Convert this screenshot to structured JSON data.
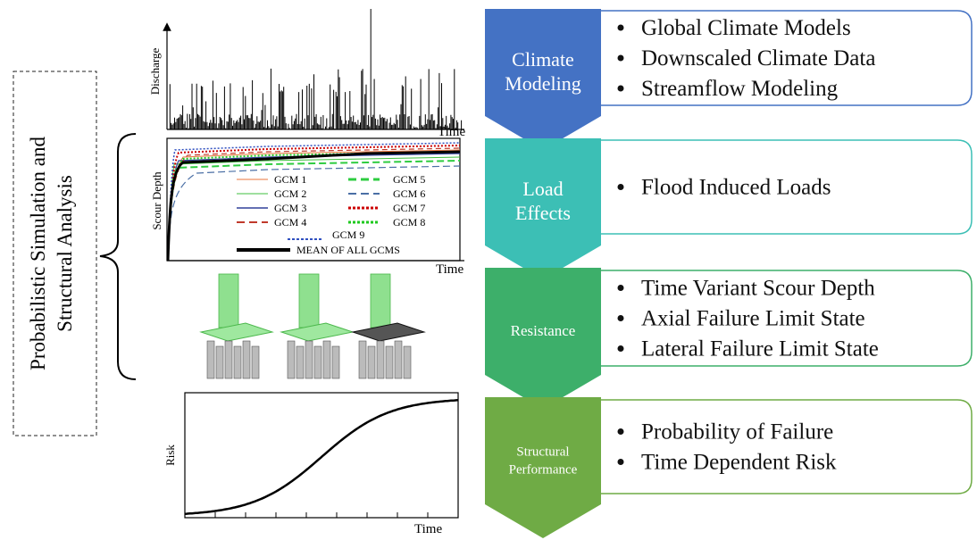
{
  "side_label": {
    "lines": [
      "Probabilistic Simulation and",
      "Structural Analysis"
    ]
  },
  "panels": {
    "discharge": {
      "y_label": "Discharge",
      "x_label": "Time"
    },
    "scour": {
      "y_label": "Scour Depth",
      "x_label": "Time",
      "legend": [
        "GCM 1",
        "GCM 2",
        "GCM 3",
        "GCM 4",
        "GCM 5",
        "GCM 6",
        "GCM 7",
        "GCM 8",
        "GCM 9",
        "MEAN OF ALL GCMS"
      ]
    },
    "risk": {
      "y_label": "Risk",
      "x_label": "Time"
    }
  },
  "stages": [
    {
      "label": [
        "Climate",
        "Modeling"
      ],
      "bullets": [
        "Global Climate Models",
        "Downscaled Climate Data",
        "Streamflow Modeling"
      ]
    },
    {
      "label": [
        "Load",
        "Effects"
      ],
      "bullets": [
        "Flood Induced Loads"
      ]
    },
    {
      "label": [
        "Resistance"
      ],
      "bullets": [
        "Time Variant Scour Depth",
        "Axial Failure Limit State",
        "Lateral Failure Limit State"
      ]
    },
    {
      "label": [
        "Structural",
        "Performance"
      ],
      "bullets": [
        "Probability of Failure",
        "Time Dependent Risk"
      ]
    }
  ]
}
